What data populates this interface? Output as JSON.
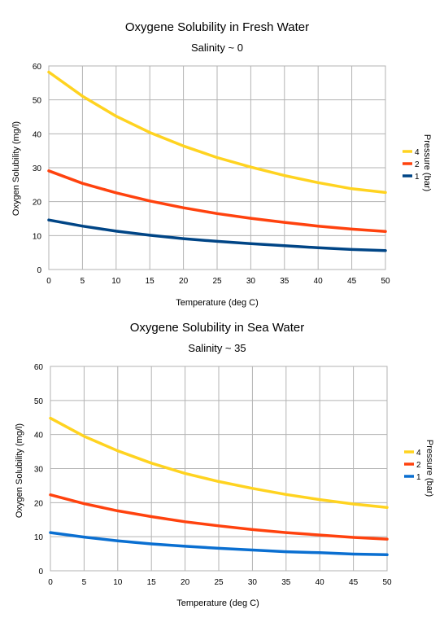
{
  "chart_data": [
    {
      "type": "line",
      "title": "Oxygene Solubility in Fresh Water",
      "subtitle": "Salinity ~ 0",
      "xlabel": "Temperature (deg C)",
      "ylabel": "Oxygen Solubility (mg/l)",
      "legend_title": "Pressure (bar)",
      "legend_position": "right",
      "grid": true,
      "xlim": [
        0,
        50
      ],
      "ylim": [
        0,
        60
      ],
      "xticks": [
        0,
        5,
        10,
        15,
        20,
        25,
        30,
        35,
        40,
        45,
        50
      ],
      "yticks": [
        0,
        10,
        20,
        30,
        40,
        50,
        60
      ],
      "x": [
        0,
        5,
        10,
        15,
        20,
        25,
        30,
        35,
        40,
        45,
        50
      ],
      "series": [
        {
          "name": "4",
          "color": "#ffd320",
          "values": [
            58.2,
            51.1,
            45.2,
            40.4,
            36.4,
            33.0,
            30.2,
            27.7,
            25.6,
            23.8,
            22.7
          ]
        },
        {
          "name": "2",
          "color": "#ff420e",
          "values": [
            29.1,
            25.4,
            22.6,
            20.2,
            18.2,
            16.5,
            15.1,
            13.9,
            12.8,
            11.9,
            11.2
          ]
        },
        {
          "name": "1",
          "color": "#004586",
          "values": [
            14.6,
            12.8,
            11.3,
            10.1,
            9.1,
            8.3,
            7.6,
            7.0,
            6.4,
            5.9,
            5.6
          ]
        }
      ]
    },
    {
      "type": "line",
      "title": "Oxygene Solubility in Sea Water",
      "subtitle": "Salinity ~ 35",
      "xlabel": "Temperature (deg C)",
      "ylabel": "Oxygen Solubility (mg/l)",
      "legend_title": "Pressure (bar)",
      "legend_position": "right",
      "grid": true,
      "xlim": [
        0,
        50
      ],
      "ylim": [
        0,
        60
      ],
      "xticks": [
        0,
        5,
        10,
        15,
        20,
        25,
        30,
        35,
        40,
        45,
        50
      ],
      "yticks": [
        0,
        10,
        20,
        30,
        40,
        50,
        60
      ],
      "x": [
        0,
        5,
        10,
        15,
        20,
        25,
        30,
        35,
        40,
        45,
        50
      ],
      "series": [
        {
          "name": "4",
          "color": "#ffd320",
          "values": [
            44.8,
            39.5,
            35.2,
            31.6,
            28.6,
            26.2,
            24.2,
            22.4,
            20.9,
            19.6,
            18.6
          ]
        },
        {
          "name": "2",
          "color": "#ff420e",
          "values": [
            22.3,
            19.7,
            17.6,
            15.9,
            14.4,
            13.2,
            12.1,
            11.2,
            10.5,
            9.8,
            9.3
          ]
        },
        {
          "name": "1",
          "color": "#0a6fd1",
          "values": [
            11.2,
            9.9,
            8.8,
            7.9,
            7.2,
            6.6,
            6.1,
            5.6,
            5.3,
            4.9,
            4.7
          ]
        }
      ]
    }
  ]
}
